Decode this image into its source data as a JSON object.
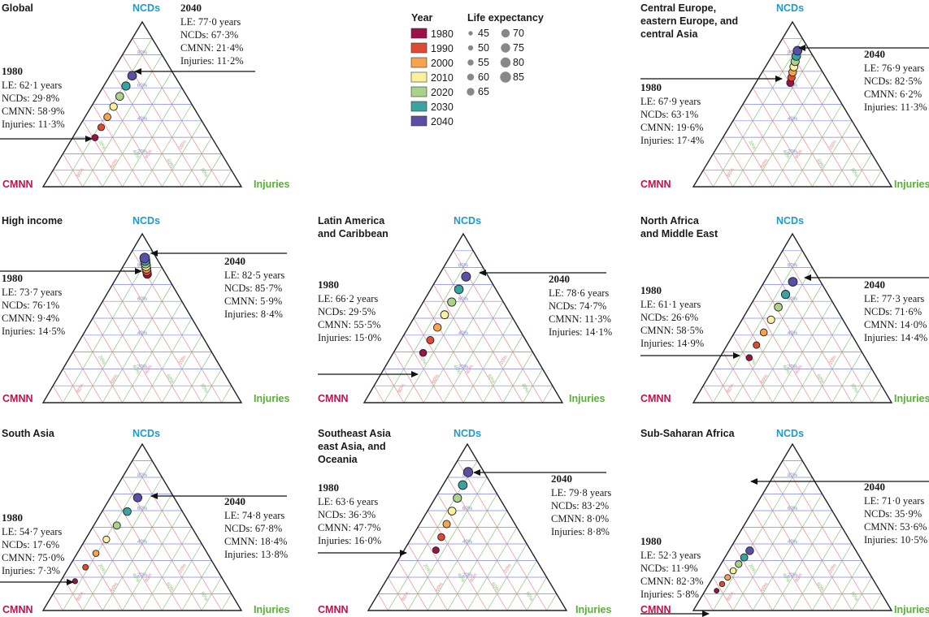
{
  "legend": {
    "year_title": "Year",
    "years": [
      {
        "label": "1980",
        "color": "#9b1148"
      },
      {
        "label": "1990",
        "color": "#e04a34"
      },
      {
        "label": "2000",
        "color": "#f6a34e"
      },
      {
        "label": "2010",
        "color": "#fbf0a0"
      },
      {
        "label": "2020",
        "color": "#a9d38a"
      },
      {
        "label": "2030",
        "color": "#3aa3a1"
      },
      {
        "label": "2040",
        "color": "#5a4fa6"
      }
    ],
    "le_title": "Life expectancy",
    "le_values": [
      "45",
      "50",
      "55",
      "60",
      "65",
      "70",
      "75",
      "80",
      "85"
    ]
  },
  "colors": {
    "ncds": "#1e9bc9",
    "cmnn": "#c0124b",
    "injuries": "#5aae3a",
    "grid_ncds": "#7f86d8",
    "grid_cmnn": "#e8878f",
    "grid_injuries": "#8ac27a",
    "outline": "#222222"
  },
  "chart_data": [
    {
      "type": "scatter",
      "subtype": "ternary",
      "title": "Global",
      "axes": {
        "top": "NCDs",
        "left": "CMNN",
        "right": "Injuries"
      },
      "grid_labels": [
        "20%",
        "40%",
        "60%",
        "80%"
      ],
      "annotation_1980": {
        "year": "1980",
        "lines": [
          "LE: 62·1 years",
          "NCDs: 29·8%",
          "CMNN: 58·9%",
          "Injuries: 11·3%"
        ]
      },
      "annotation_2040": {
        "year": "2040",
        "lines": [
          "LE: 77·0 years",
          "NCDs: 67·3%",
          "CMNN: 21·4%",
          "Injuries: 11·2%"
        ]
      },
      "start": {
        "ncds": 29.8,
        "cmnn": 58.9,
        "injuries": 11.3,
        "le": 62.1
      },
      "end": {
        "ncds": 67.3,
        "cmnn": 21.4,
        "injuries": 11.2,
        "le": 77.0
      }
    },
    {
      "type": "scatter",
      "subtype": "ternary",
      "title": "Central Europe,\neastern Europe, and\ncentral Asia",
      "axes": {
        "top": "NCDs",
        "left": "CMNN",
        "right": "Injuries"
      },
      "grid_labels": [
        "20%",
        "40%",
        "60%",
        "80%"
      ],
      "annotation_1980": {
        "year": "1980",
        "lines": [
          "LE: 67·9 years",
          "NCDs: 63·1%",
          "CMNN: 19·6%",
          "Injuries: 17·4%"
        ]
      },
      "annotation_2040": {
        "year": "2040",
        "lines": [
          "LE: 76·9 years",
          "NCDs: 82·5%",
          "CMNN: 6·2%",
          "Injuries: 11·3%"
        ]
      },
      "start": {
        "ncds": 63.1,
        "cmnn": 19.6,
        "injuries": 17.4,
        "le": 67.9
      },
      "end": {
        "ncds": 82.5,
        "cmnn": 6.2,
        "injuries": 11.3,
        "le": 76.9
      }
    },
    {
      "type": "scatter",
      "subtype": "ternary",
      "title": "High income",
      "axes": {
        "top": "NCDs",
        "left": "CMNN",
        "right": "Injuries"
      },
      "grid_labels": [
        "20%",
        "40%",
        "60%",
        "80%"
      ],
      "annotation_1980": {
        "year": "1980",
        "lines": [
          "LE: 73·7 years",
          "NCDs: 76·1%",
          "CMNN: 9·4%",
          "Injuries: 14·5%"
        ]
      },
      "annotation_2040": {
        "year": "2040",
        "lines": [
          "LE: 82·5 years",
          "NCDs: 85·7%",
          "CMNN: 5·9%",
          "Injuries: 8·4%"
        ]
      },
      "start": {
        "ncds": 76.1,
        "cmnn": 9.4,
        "injuries": 14.5,
        "le": 73.7
      },
      "end": {
        "ncds": 85.7,
        "cmnn": 5.9,
        "injuries": 8.4,
        "le": 82.5
      }
    },
    {
      "type": "scatter",
      "subtype": "ternary",
      "title": "Latin America\nand Caribbean",
      "axes": {
        "top": "NCDs",
        "left": "CMNN",
        "right": "Injuries"
      },
      "grid_labels": [
        "20%",
        "40%",
        "60%",
        "80%"
      ],
      "annotation_1980": {
        "year": "1980",
        "lines": [
          "LE: 66·2 years",
          "NCDs: 29·5%",
          "CMNN: 55·5%",
          "Injuries: 15·0%"
        ]
      },
      "annotation_2040": {
        "year": "2040",
        "lines": [
          "LE: 78·6 years",
          "NCDs: 74·7%",
          "CMNN: 11·3%",
          "Injuries: 14·1%"
        ]
      },
      "start": {
        "ncds": 29.5,
        "cmnn": 55.5,
        "injuries": 15.0,
        "le": 66.2
      },
      "end": {
        "ncds": 74.7,
        "cmnn": 11.3,
        "injuries": 14.1,
        "le": 78.6
      }
    },
    {
      "type": "scatter",
      "subtype": "ternary",
      "title": "North Africa\nand Middle East",
      "axes": {
        "top": "NCDs",
        "left": "CMNN",
        "right": "Injuries"
      },
      "grid_labels": [
        "20%",
        "40%",
        "60%",
        "80%"
      ],
      "annotation_1980": {
        "year": "1980",
        "lines": [
          "LE: 61·1 years",
          "NCDs: 26·6%",
          "CMNN: 58·5%",
          "Injuries: 14·9%"
        ]
      },
      "annotation_2040": {
        "year": "2040",
        "lines": [
          "LE: 77·3 years",
          "NCDs: 71·6%",
          "CMNN: 14·0%",
          "Injuries: 14·4%"
        ]
      },
      "start": {
        "ncds": 26.6,
        "cmnn": 58.5,
        "injuries": 14.9,
        "le": 61.1
      },
      "end": {
        "ncds": 71.6,
        "cmnn": 14.0,
        "injuries": 14.4,
        "le": 77.3
      }
    },
    {
      "type": "scatter",
      "subtype": "ternary",
      "title": "South Asia",
      "axes": {
        "top": "NCDs",
        "left": "CMNN",
        "right": "Injuries"
      },
      "grid_labels": [
        "20%",
        "40%",
        "60%",
        "80%"
      ],
      "annotation_1980": {
        "year": "1980",
        "lines": [
          "LE: 54·7 years",
          "NCDs: 17·6%",
          "CMNN: 75·0%",
          "Injuries: 7·3%"
        ]
      },
      "annotation_2040": {
        "year": "2040",
        "lines": [
          "LE: 74·8 years",
          "NCDs: 67·8%",
          "CMNN: 18·4%",
          "Injuries: 13·8%"
        ]
      },
      "start": {
        "ncds": 17.6,
        "cmnn": 75.0,
        "injuries": 7.3,
        "le": 54.7
      },
      "end": {
        "ncds": 67.8,
        "cmnn": 18.4,
        "injuries": 13.8,
        "le": 74.8
      }
    },
    {
      "type": "scatter",
      "subtype": "ternary",
      "title": "Southeast Asia\neast Asia, and\nOceania",
      "axes": {
        "top": "NCDs",
        "left": "CMNN",
        "right": "Injuries"
      },
      "grid_labels": [
        "20%",
        "40%",
        "60%",
        "80%"
      ],
      "annotation_1980": {
        "year": "1980",
        "lines": [
          "LE: 63·6 years",
          "NCDs: 36·3%",
          "CMNN: 47·7%",
          "Injuries: 16·0%"
        ]
      },
      "annotation_2040": {
        "year": "2040",
        "lines": [
          "LE: 79·8 years",
          "NCDs: 83·2%",
          "CMNN: 8·0%",
          "Injuries: 8·8%"
        ]
      },
      "start": {
        "ncds": 36.3,
        "cmnn": 47.7,
        "injuries": 16.0,
        "le": 63.6
      },
      "end": {
        "ncds": 83.2,
        "cmnn": 8.0,
        "injuries": 8.8,
        "le": 79.8
      }
    },
    {
      "type": "scatter",
      "subtype": "ternary",
      "title": "Sub-Saharan Africa",
      "axes": {
        "top": "NCDs",
        "left": "CMNN",
        "right": "Injuries"
      },
      "grid_labels": [
        "20%",
        "40%",
        "60%",
        "80%"
      ],
      "annotation_1980": {
        "year": "1980",
        "lines": [
          "LE: 52·3 years",
          "NCDs: 11·9%",
          "CMNN: 82·3%",
          "Injuries: 5·8%"
        ]
      },
      "annotation_2040": {
        "year": "2040",
        "lines": [
          "LE: 71·0 years",
          "NCDs: 35·9%",
          "CMNN: 53·6%",
          "Injuries: 10·5%"
        ]
      },
      "start": {
        "ncds": 11.9,
        "cmnn": 82.3,
        "injuries": 5.8,
        "le": 52.3
      },
      "end": {
        "ncds": 35.9,
        "cmnn": 53.6,
        "injuries": 10.5,
        "le": 71.0
      }
    }
  ]
}
